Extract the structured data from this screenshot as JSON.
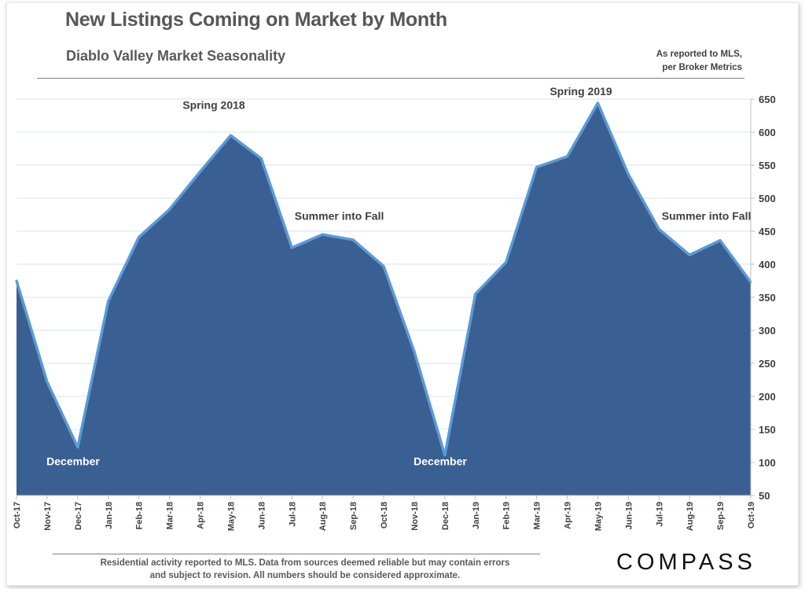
{
  "chart_data": {
    "type": "area",
    "title": "New Listings Coming on Market by Month",
    "subtitle": "Diablo Valley Market Seasonality",
    "source_note": [
      "As reported to MLS,",
      "per Broker Metrics"
    ],
    "categories": [
      "Oct-17",
      "Nov-17",
      "Dec-17",
      "Jan-18",
      "Feb-18",
      "Mar-18",
      "Apr-18",
      "May-18",
      "Jun-18",
      "Jul-18",
      "Aug-18",
      "Sep-18",
      "Oct-18",
      "Nov-18",
      "Dec-18",
      "Jan-19",
      "Feb-19",
      "Mar-19",
      "Apr-19",
      "May-19",
      "Jun-19",
      "Jul-19",
      "Aug-19",
      "Sep-19",
      "Oct-19"
    ],
    "values": [
      375,
      222,
      123,
      344,
      441,
      483,
      540,
      595,
      560,
      425,
      445,
      437,
      397,
      268,
      111,
      355,
      403,
      547,
      563,
      644,
      536,
      453,
      414,
      436,
      373
    ],
    "ylim": [
      50,
      650
    ],
    "y_ticks": [
      50,
      100,
      150,
      200,
      250,
      300,
      350,
      400,
      450,
      500,
      550,
      600,
      650
    ],
    "y_axis_side": "right",
    "grid": true,
    "fill_color": "#3a5f93",
    "line_color": "#5b9bd5",
    "annotations": [
      {
        "text": "December",
        "category": "Nov-17",
        "value": 96
      },
      {
        "text": "Spring 2018",
        "category": "Apr-18",
        "value": 635
      },
      {
        "text": "Summer into Fall",
        "category": "Aug-18",
        "value": 467
      },
      {
        "text": "December",
        "category": "Nov-18",
        "value": 96
      },
      {
        "text": "Spring 2019",
        "category": "Apr-19",
        "value": 656
      },
      {
        "text": "Summer into Fall",
        "category": "Aug-19",
        "value": 467
      }
    ]
  },
  "footnote": [
    "Residential activity reported to MLS. Data from sources deemed reliable but may contain errors",
    "and subject to revision. All numbers should be considered approximate."
  ],
  "brand": {
    "logo_text": "COMPASS"
  }
}
